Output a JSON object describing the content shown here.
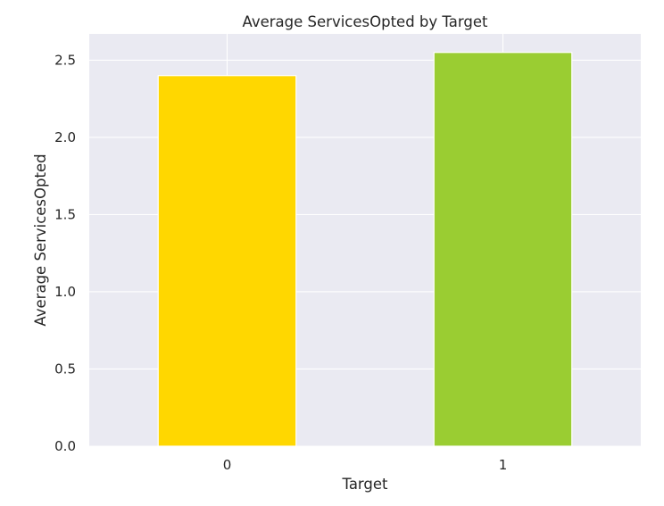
{
  "chart_data": {
    "type": "bar",
    "title": "Average ServicesOpted by Target",
    "xlabel": "Target",
    "ylabel": "Average ServicesOpted",
    "categories": [
      "0",
      "1"
    ],
    "values": [
      2.4,
      2.55
    ],
    "bar_colors": [
      "#FFD700",
      "#9ACD32"
    ],
    "ylim": [
      0,
      2.67
    ],
    "yticks": [
      0.0,
      0.5,
      1.0,
      1.5,
      2.0,
      2.5
    ],
    "ytick_labels": [
      "0.0",
      "0.5",
      "1.0",
      "1.5",
      "2.0",
      "2.5"
    ],
    "grid": true,
    "legend": "none",
    "background_color": "#EAEAF2",
    "grid_color": "#FFFFFF"
  }
}
